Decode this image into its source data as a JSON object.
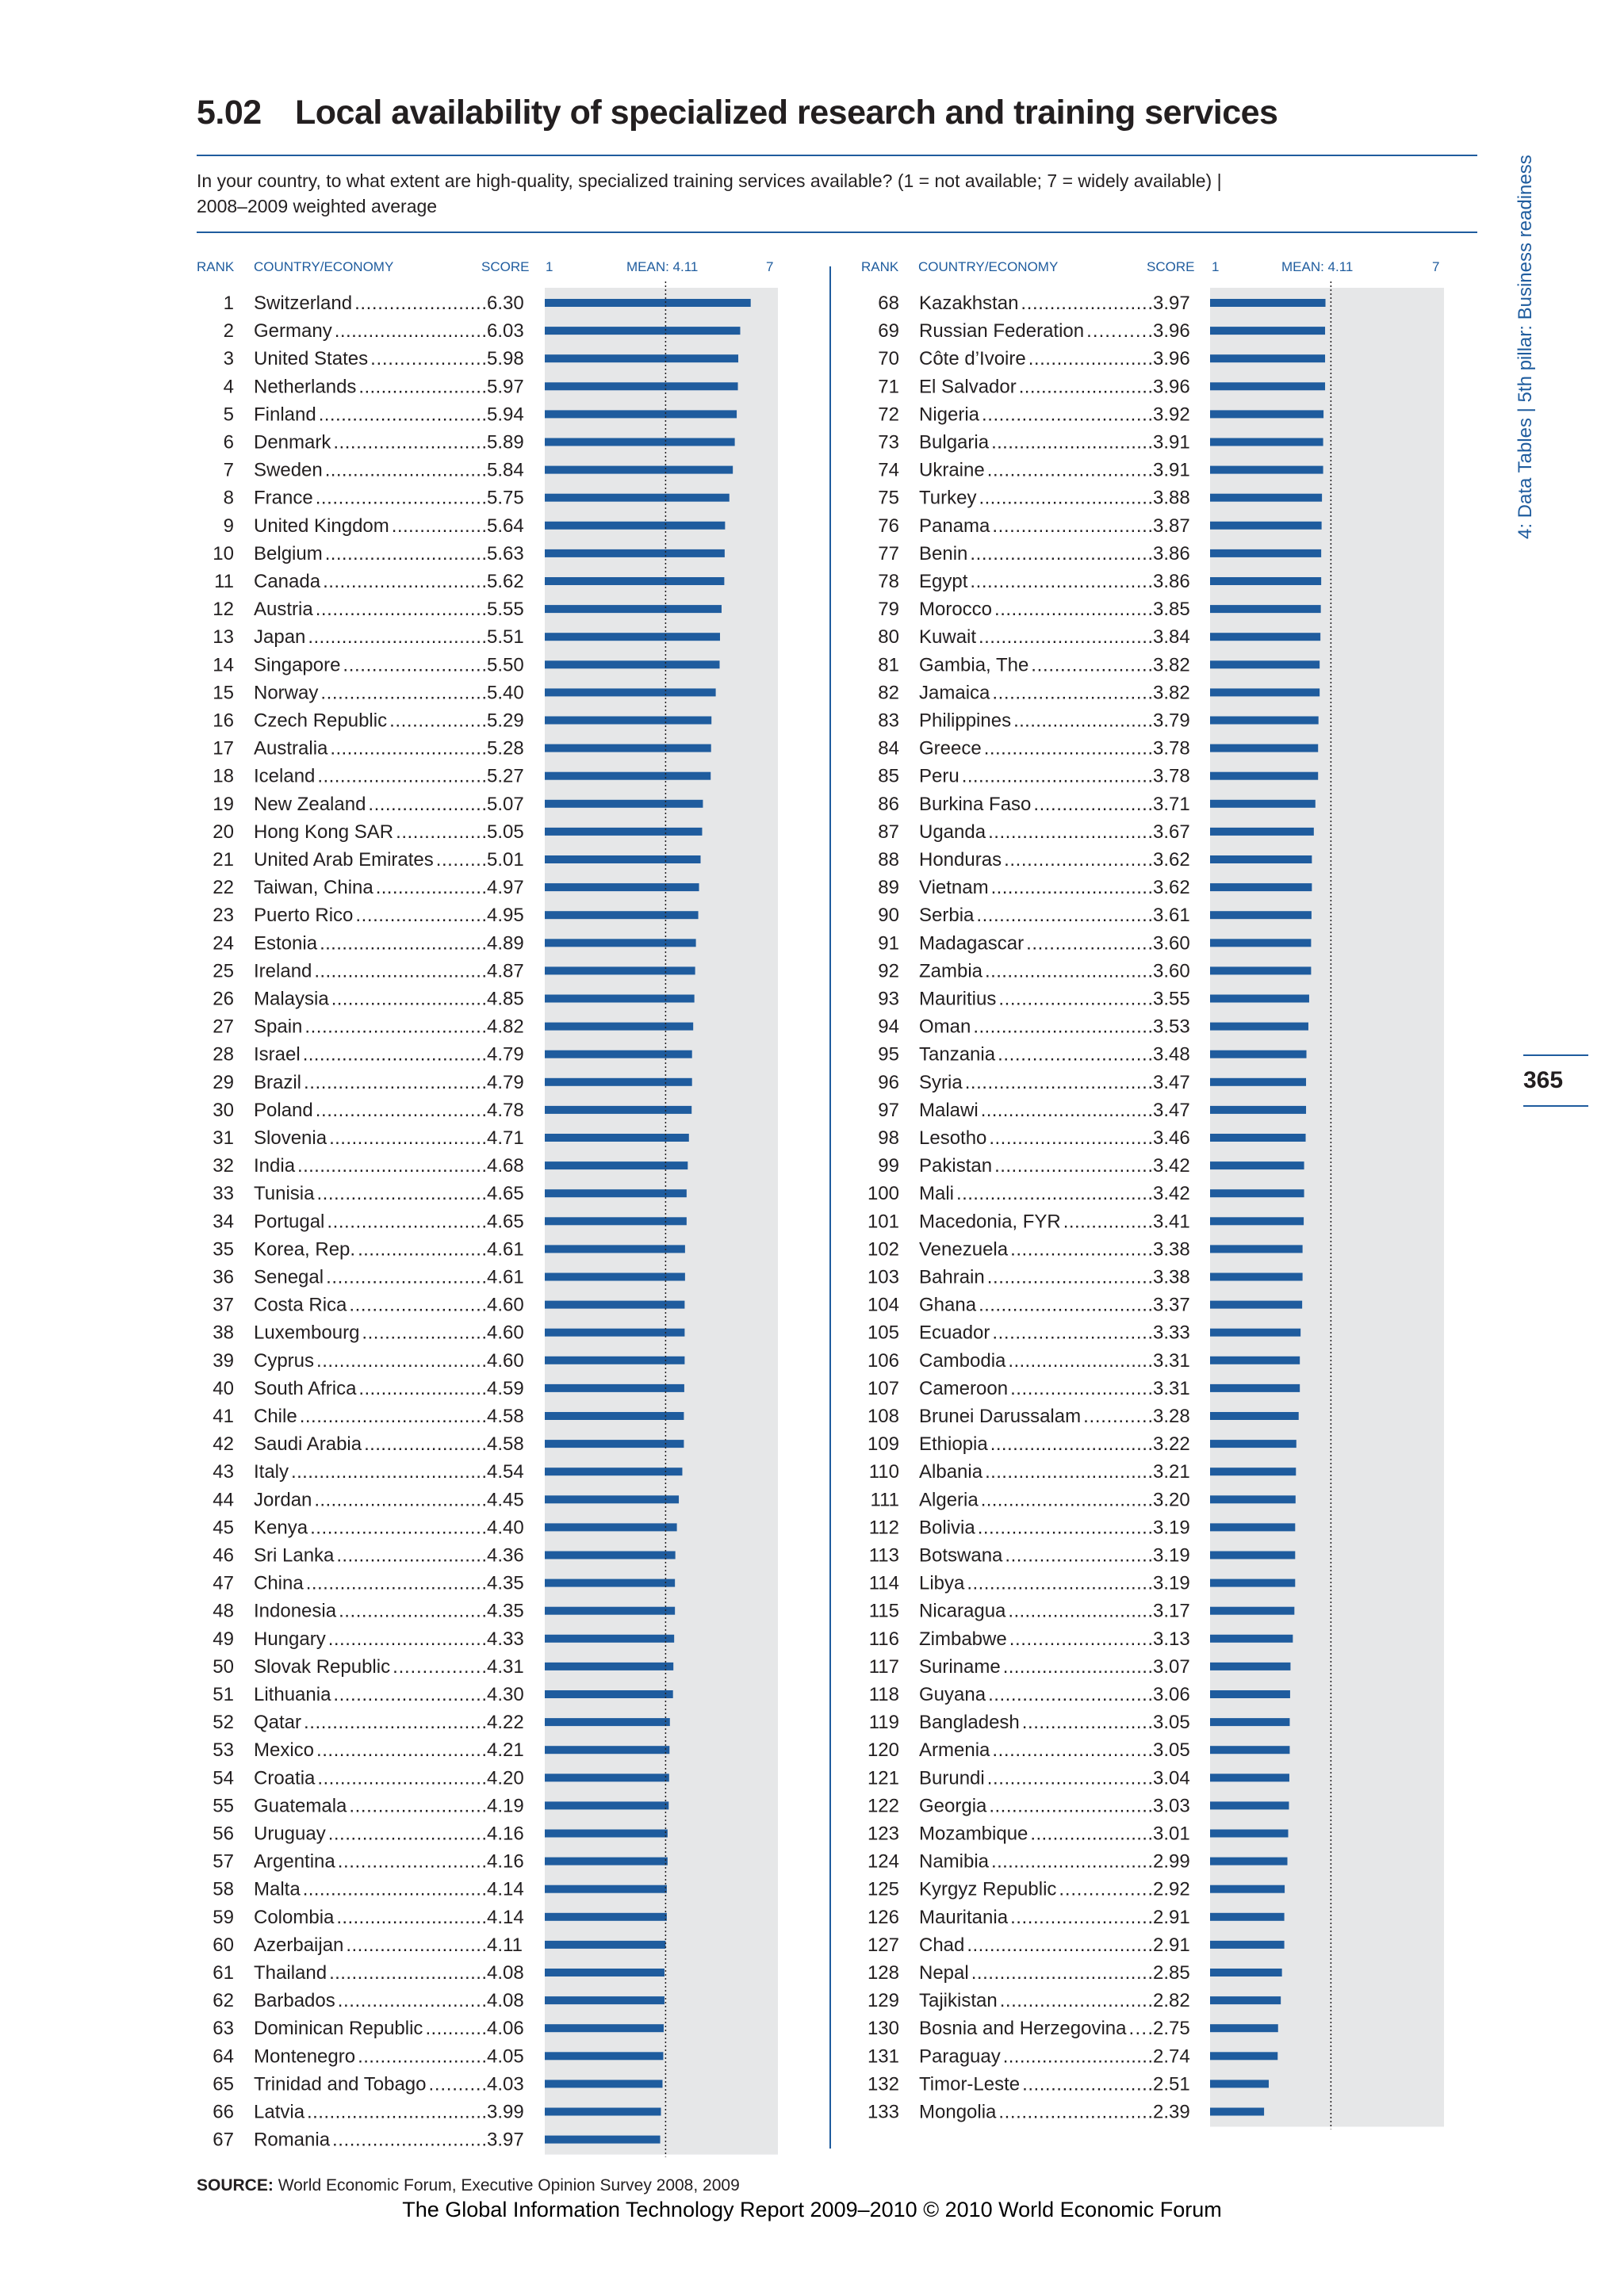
{
  "header": {
    "section_number": "5.02",
    "title": "Local availability of specialized research and training services",
    "question_line1": "In your country, to what extent are high-quality, specialized training services available? (1 = not available; 7 = widely available)  |",
    "question_line2": "2008–2009 weighted average"
  },
  "columns": {
    "rank": "RANK",
    "country": "COUNTRY/ECONOMY",
    "score": "SCORE",
    "min": "1",
    "mean": "MEAN: 4.11",
    "max": "7"
  },
  "side_label": "4: Data Tables  |  5th pillar: Business readiness",
  "page_number": "365",
  "source_label": "SOURCE:",
  "source_text": "World Economic Forum, Executive Opinion Survey 2008, 2009",
  "footer": "The Global Information Technology Report 2009–2010 © 2010 World Economic Forum",
  "colors": {
    "bar": "#1f5c9e",
    "track": "#e6e7e8",
    "accent": "#1f5c9e",
    "text": "#231f20"
  },
  "chart_data": {
    "type": "bar",
    "orientation": "horizontal",
    "xlim": [
      1,
      7
    ],
    "mean": 4.11,
    "rows": [
      {
        "rank": 1,
        "country": "Switzerland",
        "score": "6.30"
      },
      {
        "rank": 2,
        "country": "Germany",
        "score": "6.03"
      },
      {
        "rank": 3,
        "country": "United States",
        "score": "5.98"
      },
      {
        "rank": 4,
        "country": "Netherlands",
        "score": "5.97"
      },
      {
        "rank": 5,
        "country": "Finland",
        "score": "5.94"
      },
      {
        "rank": 6,
        "country": "Denmark",
        "score": "5.89"
      },
      {
        "rank": 7,
        "country": "Sweden",
        "score": "5.84"
      },
      {
        "rank": 8,
        "country": "France",
        "score": "5.75"
      },
      {
        "rank": 9,
        "country": "United Kingdom",
        "score": "5.64"
      },
      {
        "rank": 10,
        "country": "Belgium",
        "score": "5.63"
      },
      {
        "rank": 11,
        "country": "Canada",
        "score": "5.62"
      },
      {
        "rank": 12,
        "country": "Austria",
        "score": "5.55"
      },
      {
        "rank": 13,
        "country": "Japan",
        "score": "5.51"
      },
      {
        "rank": 14,
        "country": "Singapore",
        "score": "5.50"
      },
      {
        "rank": 15,
        "country": "Norway",
        "score": "5.40"
      },
      {
        "rank": 16,
        "country": "Czech Republic",
        "score": "5.29"
      },
      {
        "rank": 17,
        "country": "Australia",
        "score": "5.28"
      },
      {
        "rank": 18,
        "country": "Iceland",
        "score": "5.27"
      },
      {
        "rank": 19,
        "country": "New Zealand",
        "score": "5.07"
      },
      {
        "rank": 20,
        "country": "Hong Kong SAR",
        "score": "5.05"
      },
      {
        "rank": 21,
        "country": "United Arab Emirates",
        "score": "5.01"
      },
      {
        "rank": 22,
        "country": "Taiwan, China",
        "score": "4.97"
      },
      {
        "rank": 23,
        "country": "Puerto Rico",
        "score": "4.95"
      },
      {
        "rank": 24,
        "country": "Estonia",
        "score": "4.89"
      },
      {
        "rank": 25,
        "country": "Ireland",
        "score": "4.87"
      },
      {
        "rank": 26,
        "country": "Malaysia",
        "score": "4.85"
      },
      {
        "rank": 27,
        "country": "Spain",
        "score": "4.82"
      },
      {
        "rank": 28,
        "country": "Israel",
        "score": "4.79"
      },
      {
        "rank": 29,
        "country": "Brazil",
        "score": "4.79"
      },
      {
        "rank": 30,
        "country": "Poland",
        "score": "4.78"
      },
      {
        "rank": 31,
        "country": "Slovenia",
        "score": "4.71"
      },
      {
        "rank": 32,
        "country": "India",
        "score": "4.68"
      },
      {
        "rank": 33,
        "country": "Tunisia",
        "score": "4.65"
      },
      {
        "rank": 34,
        "country": "Portugal",
        "score": "4.65"
      },
      {
        "rank": 35,
        "country": "Korea, Rep.",
        "score": "4.61"
      },
      {
        "rank": 36,
        "country": "Senegal",
        "score": "4.61"
      },
      {
        "rank": 37,
        "country": "Costa Rica",
        "score": "4.60"
      },
      {
        "rank": 38,
        "country": "Luxembourg",
        "score": "4.60"
      },
      {
        "rank": 39,
        "country": "Cyprus",
        "score": "4.60"
      },
      {
        "rank": 40,
        "country": "South Africa",
        "score": "4.59"
      },
      {
        "rank": 41,
        "country": "Chile",
        "score": "4.58"
      },
      {
        "rank": 42,
        "country": "Saudi Arabia",
        "score": "4.58"
      },
      {
        "rank": 43,
        "country": "Italy",
        "score": "4.54"
      },
      {
        "rank": 44,
        "country": "Jordan",
        "score": "4.45"
      },
      {
        "rank": 45,
        "country": "Kenya",
        "score": "4.40"
      },
      {
        "rank": 46,
        "country": "Sri Lanka",
        "score": "4.36"
      },
      {
        "rank": 47,
        "country": "China",
        "score": "4.35"
      },
      {
        "rank": 48,
        "country": "Indonesia",
        "score": "4.35"
      },
      {
        "rank": 49,
        "country": "Hungary",
        "score": "4.33"
      },
      {
        "rank": 50,
        "country": "Slovak Republic",
        "score": "4.31"
      },
      {
        "rank": 51,
        "country": "Lithuania",
        "score": "4.30"
      },
      {
        "rank": 52,
        "country": "Qatar",
        "score": "4.22"
      },
      {
        "rank": 53,
        "country": "Mexico",
        "score": "4.21"
      },
      {
        "rank": 54,
        "country": "Croatia",
        "score": "4.20"
      },
      {
        "rank": 55,
        "country": "Guatemala",
        "score": "4.19"
      },
      {
        "rank": 56,
        "country": "Uruguay",
        "score": "4.16"
      },
      {
        "rank": 57,
        "country": "Argentina",
        "score": "4.16"
      },
      {
        "rank": 58,
        "country": "Malta",
        "score": "4.14"
      },
      {
        "rank": 59,
        "country": "Colombia",
        "score": "4.14"
      },
      {
        "rank": 60,
        "country": "Azerbaijan",
        "score": "4.11"
      },
      {
        "rank": 61,
        "country": "Thailand",
        "score": "4.08"
      },
      {
        "rank": 62,
        "country": "Barbados",
        "score": "4.08"
      },
      {
        "rank": 63,
        "country": "Dominican Republic",
        "score": "4.06"
      },
      {
        "rank": 64,
        "country": "Montenegro",
        "score": "4.05"
      },
      {
        "rank": 65,
        "country": "Trinidad and Tobago",
        "score": "4.03"
      },
      {
        "rank": 66,
        "country": "Latvia",
        "score": "3.99"
      },
      {
        "rank": 67,
        "country": "Romania",
        "score": "3.97"
      },
      {
        "rank": 68,
        "country": "Kazakhstan",
        "score": "3.97"
      },
      {
        "rank": 69,
        "country": "Russian Federation",
        "score": "3.96"
      },
      {
        "rank": 70,
        "country": "Côte d’Ivoire",
        "score": "3.96"
      },
      {
        "rank": 71,
        "country": "El Salvador",
        "score": "3.96"
      },
      {
        "rank": 72,
        "country": "Nigeria",
        "score": "3.92"
      },
      {
        "rank": 73,
        "country": "Bulgaria",
        "score": "3.91"
      },
      {
        "rank": 74,
        "country": "Ukraine",
        "score": "3.91"
      },
      {
        "rank": 75,
        "country": "Turkey",
        "score": "3.88"
      },
      {
        "rank": 76,
        "country": "Panama",
        "score": "3.87"
      },
      {
        "rank": 77,
        "country": "Benin",
        "score": "3.86"
      },
      {
        "rank": 78,
        "country": "Egypt",
        "score": "3.86"
      },
      {
        "rank": 79,
        "country": "Morocco",
        "score": "3.85"
      },
      {
        "rank": 80,
        "country": "Kuwait",
        "score": "3.84"
      },
      {
        "rank": 81,
        "country": "Gambia, The",
        "score": "3.82"
      },
      {
        "rank": 82,
        "country": "Jamaica",
        "score": "3.82"
      },
      {
        "rank": 83,
        "country": "Philippines",
        "score": "3.79"
      },
      {
        "rank": 84,
        "country": "Greece",
        "score": "3.78"
      },
      {
        "rank": 85,
        "country": "Peru",
        "score": "3.78"
      },
      {
        "rank": 86,
        "country": "Burkina Faso",
        "score": "3.71"
      },
      {
        "rank": 87,
        "country": "Uganda",
        "score": "3.67"
      },
      {
        "rank": 88,
        "country": "Honduras",
        "score": "3.62"
      },
      {
        "rank": 89,
        "country": "Vietnam",
        "score": "3.62"
      },
      {
        "rank": 90,
        "country": "Serbia",
        "score": "3.61"
      },
      {
        "rank": 91,
        "country": "Madagascar",
        "score": "3.60"
      },
      {
        "rank": 92,
        "country": "Zambia",
        "score": "3.60"
      },
      {
        "rank": 93,
        "country": "Mauritius",
        "score": "3.55"
      },
      {
        "rank": 94,
        "country": "Oman",
        "score": "3.53"
      },
      {
        "rank": 95,
        "country": "Tanzania",
        "score": "3.48"
      },
      {
        "rank": 96,
        "country": "Syria",
        "score": "3.47"
      },
      {
        "rank": 97,
        "country": "Malawi",
        "score": "3.47"
      },
      {
        "rank": 98,
        "country": "Lesotho",
        "score": "3.46"
      },
      {
        "rank": 99,
        "country": "Pakistan",
        "score": "3.42"
      },
      {
        "rank": 100,
        "country": "Mali",
        "score": "3.42"
      },
      {
        "rank": 101,
        "country": "Macedonia, FYR",
        "score": "3.41"
      },
      {
        "rank": 102,
        "country": "Venezuela",
        "score": "3.38"
      },
      {
        "rank": 103,
        "country": "Bahrain",
        "score": "3.38"
      },
      {
        "rank": 104,
        "country": "Ghana",
        "score": "3.37"
      },
      {
        "rank": 105,
        "country": "Ecuador",
        "score": "3.33"
      },
      {
        "rank": 106,
        "country": "Cambodia",
        "score": "3.31"
      },
      {
        "rank": 107,
        "country": "Cameroon",
        "score": "3.31"
      },
      {
        "rank": 108,
        "country": "Brunei Darussalam",
        "score": "3.28"
      },
      {
        "rank": 109,
        "country": "Ethiopia",
        "score": "3.22"
      },
      {
        "rank": 110,
        "country": "Albania",
        "score": "3.21"
      },
      {
        "rank": 111,
        "country": "Algeria",
        "score": "3.20"
      },
      {
        "rank": 112,
        "country": "Bolivia",
        "score": "3.19"
      },
      {
        "rank": 113,
        "country": "Botswana",
        "score": "3.19"
      },
      {
        "rank": 114,
        "country": "Libya",
        "score": "3.19"
      },
      {
        "rank": 115,
        "country": "Nicaragua",
        "score": "3.17"
      },
      {
        "rank": 116,
        "country": "Zimbabwe",
        "score": "3.13"
      },
      {
        "rank": 117,
        "country": "Suriname",
        "score": "3.07"
      },
      {
        "rank": 118,
        "country": "Guyana",
        "score": "3.06"
      },
      {
        "rank": 119,
        "country": "Bangladesh",
        "score": "3.05"
      },
      {
        "rank": 120,
        "country": "Armenia",
        "score": "3.05"
      },
      {
        "rank": 121,
        "country": "Burundi",
        "score": "3.04"
      },
      {
        "rank": 122,
        "country": "Georgia",
        "score": "3.03"
      },
      {
        "rank": 123,
        "country": "Mozambique",
        "score": "3.01"
      },
      {
        "rank": 124,
        "country": "Namibia",
        "score": "2.99"
      },
      {
        "rank": 125,
        "country": "Kyrgyz Republic",
        "score": "2.92"
      },
      {
        "rank": 126,
        "country": "Mauritania",
        "score": "2.91"
      },
      {
        "rank": 127,
        "country": "Chad",
        "score": "2.91"
      },
      {
        "rank": 128,
        "country": "Nepal",
        "score": "2.85"
      },
      {
        "rank": 129,
        "country": "Tajikistan",
        "score": "2.82"
      },
      {
        "rank": 130,
        "country": "Bosnia and Herzegovina",
        "score": "2.75"
      },
      {
        "rank": 131,
        "country": "Paraguay",
        "score": "2.74"
      },
      {
        "rank": 132,
        "country": "Timor-Leste",
        "score": "2.51"
      },
      {
        "rank": 133,
        "country": "Mongolia",
        "score": "2.39"
      }
    ]
  }
}
